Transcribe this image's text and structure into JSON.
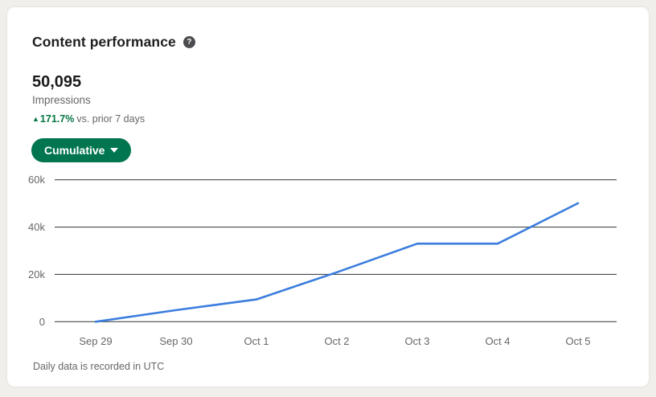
{
  "card": {
    "title": "Content performance",
    "metric": {
      "value": "50,095",
      "label": "Impressions"
    },
    "change": {
      "arrow": "▲",
      "percent": "171.7%",
      "comparison": "vs. prior 7 days"
    },
    "filter_button": {
      "label": "Cumulative"
    },
    "footnote": "Daily data is recorded in UTC"
  },
  "icons": {
    "help": "?"
  },
  "colors": {
    "accent_green": "#057642",
    "button_green": "#01754f",
    "line_blue": "#3b7ddd",
    "gridline": "#46494e",
    "axis_text": "#666666",
    "card_bg": "#ffffff",
    "page_bg": "#f1efeb"
  },
  "chart_data": {
    "type": "line",
    "title": "Content performance (cumulative impressions)",
    "categories": [
      "Sep 29",
      "Sep 30",
      "Oct 1",
      "Oct 2",
      "Oct 3",
      "Oct 4",
      "Oct 5"
    ],
    "values": [
      0,
      4900,
      9400,
      20900,
      33000,
      33000,
      50095
    ],
    "xlabel": "",
    "ylabel": "",
    "ylim": [
      0,
      60000
    ],
    "yticks": [
      {
        "value": 0,
        "label": "0"
      },
      {
        "value": 20000,
        "label": "20k"
      },
      {
        "value": 40000,
        "label": "40k"
      },
      {
        "value": 60000,
        "label": "60k"
      }
    ],
    "grid": "horizontal",
    "legend": "none"
  }
}
